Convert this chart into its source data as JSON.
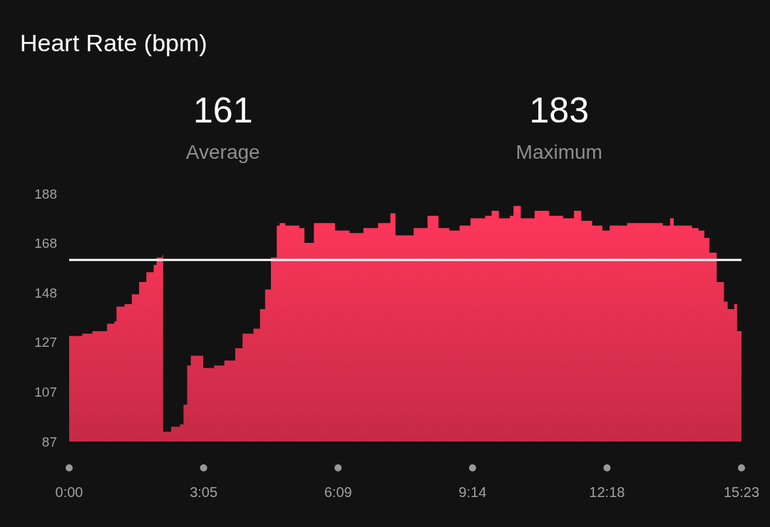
{
  "chart_data": {
    "type": "area",
    "title": "Heart Rate (bpm)",
    "annotations": [
      "161",
      "Average",
      "183",
      "Maximum"
    ],
    "x": [
      0,
      18,
      32,
      52,
      62,
      65,
      76,
      86,
      96,
      106,
      116,
      120,
      128,
      129,
      140,
      152,
      157,
      162,
      167,
      176,
      184,
      199,
      213,
      228,
      238,
      253,
      262,
      269,
      277,
      285,
      289,
      297,
      316,
      323,
      336,
      355,
      365,
      385,
      404,
      424,
      441,
      448,
      463,
      473,
      492,
      507,
      522,
      536,
      551,
      571,
      580,
      590,
      605,
      610,
      620,
      639,
      659,
      678,
      693,
      703,
      718,
      732,
      742,
      766,
      781,
      796,
      815,
      825,
      830,
      855,
      864,
      872,
      879,
      889,
      899,
      904,
      913,
      917,
      923
    ],
    "series": [
      {
        "color": "#e0304f",
        "values": [
          130,
          131,
          132,
          135,
          136,
          142,
          143,
          147,
          152,
          156,
          159,
          162,
          163,
          91,
          93,
          94,
          102,
          118,
          122,
          122,
          117,
          118,
          120,
          125,
          131,
          133,
          141,
          149,
          162,
          175,
          176,
          175,
          174,
          168,
          176,
          176,
          173,
          172,
          174,
          176,
          180,
          171,
          171,
          174,
          179,
          174,
          173,
          175,
          178,
          179,
          181,
          178,
          179,
          183,
          178,
          181,
          179,
          178,
          181,
          177,
          175,
          173,
          175,
          176,
          176,
          176,
          175,
          178,
          175,
          174,
          173,
          170,
          164,
          152,
          144,
          141,
          143,
          132,
          131
        ]
      }
    ],
    "xlim": [
      0,
      923
    ],
    "xticks": [
      {
        "value": 0,
        "label": "0:00"
      },
      {
        "value": 184.6,
        "label": "3:05"
      },
      {
        "value": 369.2,
        "label": "6:09"
      },
      {
        "value": 553.8,
        "label": "9:14"
      },
      {
        "value": 738.4,
        "label": "12:18"
      },
      {
        "value": 923,
        "label": "15:23"
      }
    ],
    "ylim": [
      87,
      188
    ],
    "yticks": [
      87,
      {
        "value": 107.2,
        "label": "107"
      },
      {
        "value": 127.4,
        "label": "127"
      },
      {
        "value": 147.6,
        "label": "148"
      },
      {
        "value": 167.8,
        "label": "168"
      },
      188
    ],
    "ref_lines": [
      {
        "axis": "y",
        "value": 161,
        "color": "#ffffff"
      }
    ],
    "grid": false
  }
}
